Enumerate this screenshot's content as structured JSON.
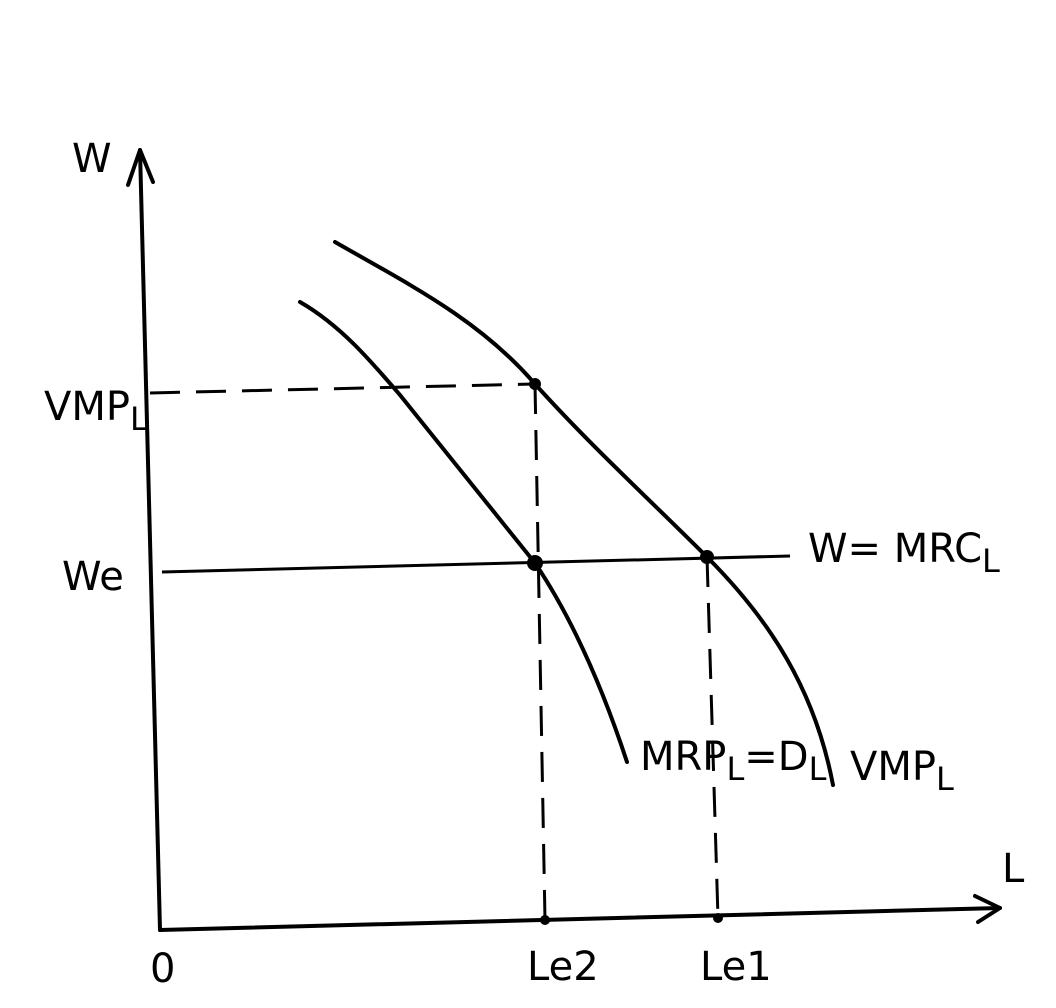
{
  "diagram": {
    "y_axis_label": "W",
    "x_axis_label": "L",
    "origin_label": "0",
    "vmp_tick_label": "VMP",
    "vmp_tick_subscript": "L",
    "wage_tick_label": "We",
    "wage_line_label": "W= MRC",
    "wage_line_subscript": "L",
    "mrp_curve_label": "MRP",
    "mrp_curve_subscript": "L",
    "mrp_curve_suffix": "=D",
    "mrp_curve_suffix_subscript": "L",
    "vmp_curve_label": "VMP",
    "vmp_curve_subscript": "L",
    "le2_label": "Le2",
    "le1_label": "Le1"
  }
}
